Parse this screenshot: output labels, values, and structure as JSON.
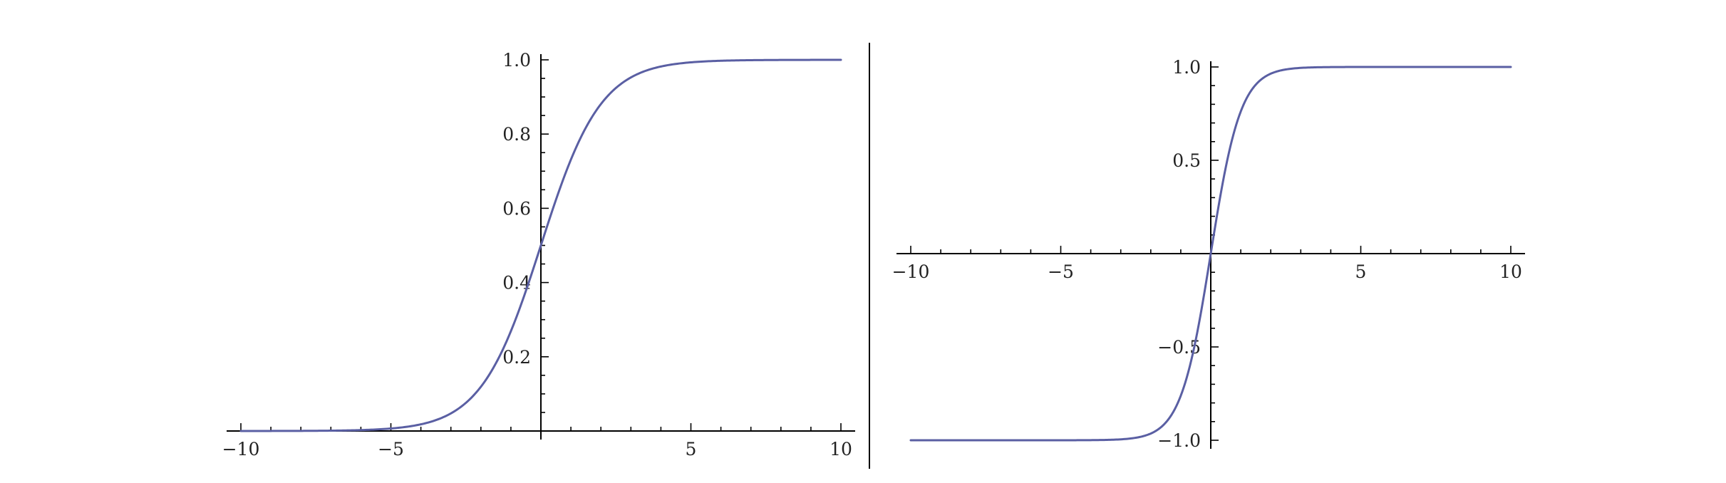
{
  "colors": {
    "curve": "#5a5fa3",
    "axis": "#000000",
    "background": "#ffffff"
  },
  "chart_data": [
    {
      "type": "line",
      "function": "logistic sigmoid",
      "xlim": [
        -10,
        10
      ],
      "ylim": [
        0,
        1
      ],
      "grid": false,
      "x_ticks": [
        -10,
        -5,
        5,
        10
      ],
      "x_tick_labels": [
        "−10",
        "−5",
        "5",
        "10"
      ],
      "y_ticks": [
        0.2,
        0.4,
        0.6,
        0.8,
        1.0
      ],
      "y_tick_labels": [
        "0.2",
        "0.4",
        "0.6",
        "0.8",
        "1.0"
      ],
      "series": [
        {
          "x": [
            -10,
            -8,
            -6,
            -5,
            -4,
            -3,
            -2,
            -1,
            0,
            1,
            2,
            3,
            4,
            5,
            6,
            8,
            10
          ],
          "y": [
            5e-05,
            0.0003,
            0.0025,
            0.0067,
            0.018,
            0.047,
            0.119,
            0.269,
            0.5,
            0.731,
            0.881,
            0.953,
            0.982,
            0.993,
            0.9975,
            0.9997,
            0.99995
          ]
        }
      ]
    },
    {
      "type": "line",
      "function": "hyperbolic tangent",
      "xlim": [
        -10,
        10
      ],
      "ylim": [
        -1,
        1
      ],
      "grid": false,
      "x_ticks": [
        -10,
        -5,
        5,
        10
      ],
      "x_tick_labels": [
        "−10",
        "−5",
        "5",
        "10"
      ],
      "y_ticks": [
        -1.0,
        -0.5,
        0.5,
        1.0
      ],
      "y_tick_labels": [
        "−1.0",
        "−0.5",
        "0.5",
        "1.0"
      ],
      "series": [
        {
          "x": [
            -10,
            -6,
            -4,
            -3,
            -2,
            -1.5,
            -1,
            -0.5,
            0,
            0.5,
            1,
            1.5,
            2,
            3,
            4,
            6,
            10
          ],
          "y": [
            -1.0,
            -0.99998,
            -0.9993,
            -0.995,
            -0.964,
            -0.905,
            -0.762,
            -0.462,
            0,
            0.462,
            0.762,
            0.905,
            0.964,
            0.995,
            0.9993,
            0.99998,
            1.0
          ]
        }
      ]
    }
  ]
}
